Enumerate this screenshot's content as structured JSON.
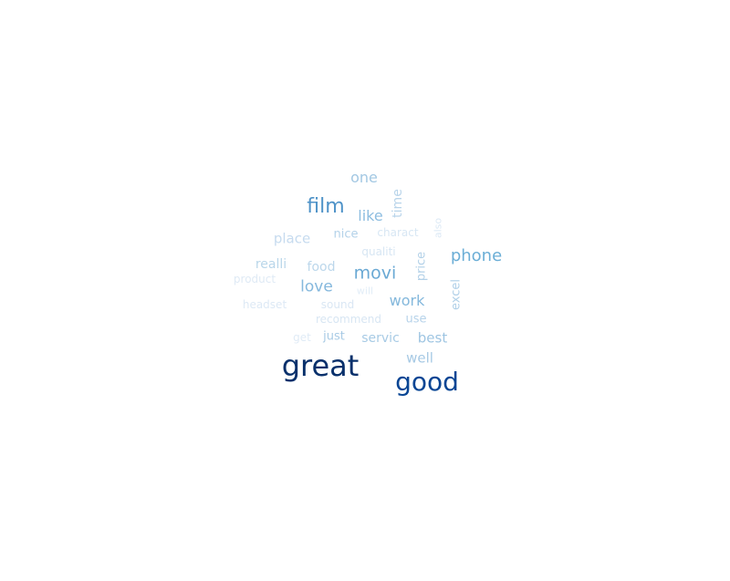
{
  "words": [
    {
      "text": "one",
      "color": "#a3c8e3"
    },
    {
      "text": "film",
      "color": "#4f93c8"
    },
    {
      "text": "like",
      "color": "#8dbde0"
    },
    {
      "text": "time",
      "color": "#b8d4ea"
    },
    {
      "text": "place",
      "color": "#c6dbef"
    },
    {
      "text": "nice",
      "color": "#b4d2e9"
    },
    {
      "text": "charact",
      "color": "#d8e7f4"
    },
    {
      "text": "also",
      "color": "#dce9f5"
    },
    {
      "text": "qualiti",
      "color": "#d7e6f3"
    },
    {
      "text": "phone",
      "color": "#6baed6"
    },
    {
      "text": "realli",
      "color": "#b9d6ea"
    },
    {
      "text": "food",
      "color": "#bcd7eb"
    },
    {
      "text": "movi",
      "color": "#6aa9d4"
    },
    {
      "text": "price",
      "color": "#b3d1e8"
    },
    {
      "text": "product",
      "color": "#dfeaf5"
    },
    {
      "text": "love",
      "color": "#85b8dd"
    },
    {
      "text": "will",
      "color": "#e2edf7"
    },
    {
      "text": "excel",
      "color": "#b0d0e8"
    },
    {
      "text": "work",
      "color": "#84b8dc"
    },
    {
      "text": "headset",
      "color": "#dde9f5"
    },
    {
      "text": "sound",
      "color": "#dae7f4"
    },
    {
      "text": "recommend",
      "color": "#d8e6f3"
    },
    {
      "text": "use",
      "color": "#b7d3ea"
    },
    {
      "text": "get",
      "color": "#e0ebf6"
    },
    {
      "text": "just",
      "color": "#a9cbe5"
    },
    {
      "text": "servic",
      "color": "#a8cbe5"
    },
    {
      "text": "best",
      "color": "#9ec5e2"
    },
    {
      "text": "well",
      "color": "#a6c9e4"
    },
    {
      "text": "great",
      "color": "#08306b"
    },
    {
      "text": "good",
      "color": "#084594"
    }
  ]
}
